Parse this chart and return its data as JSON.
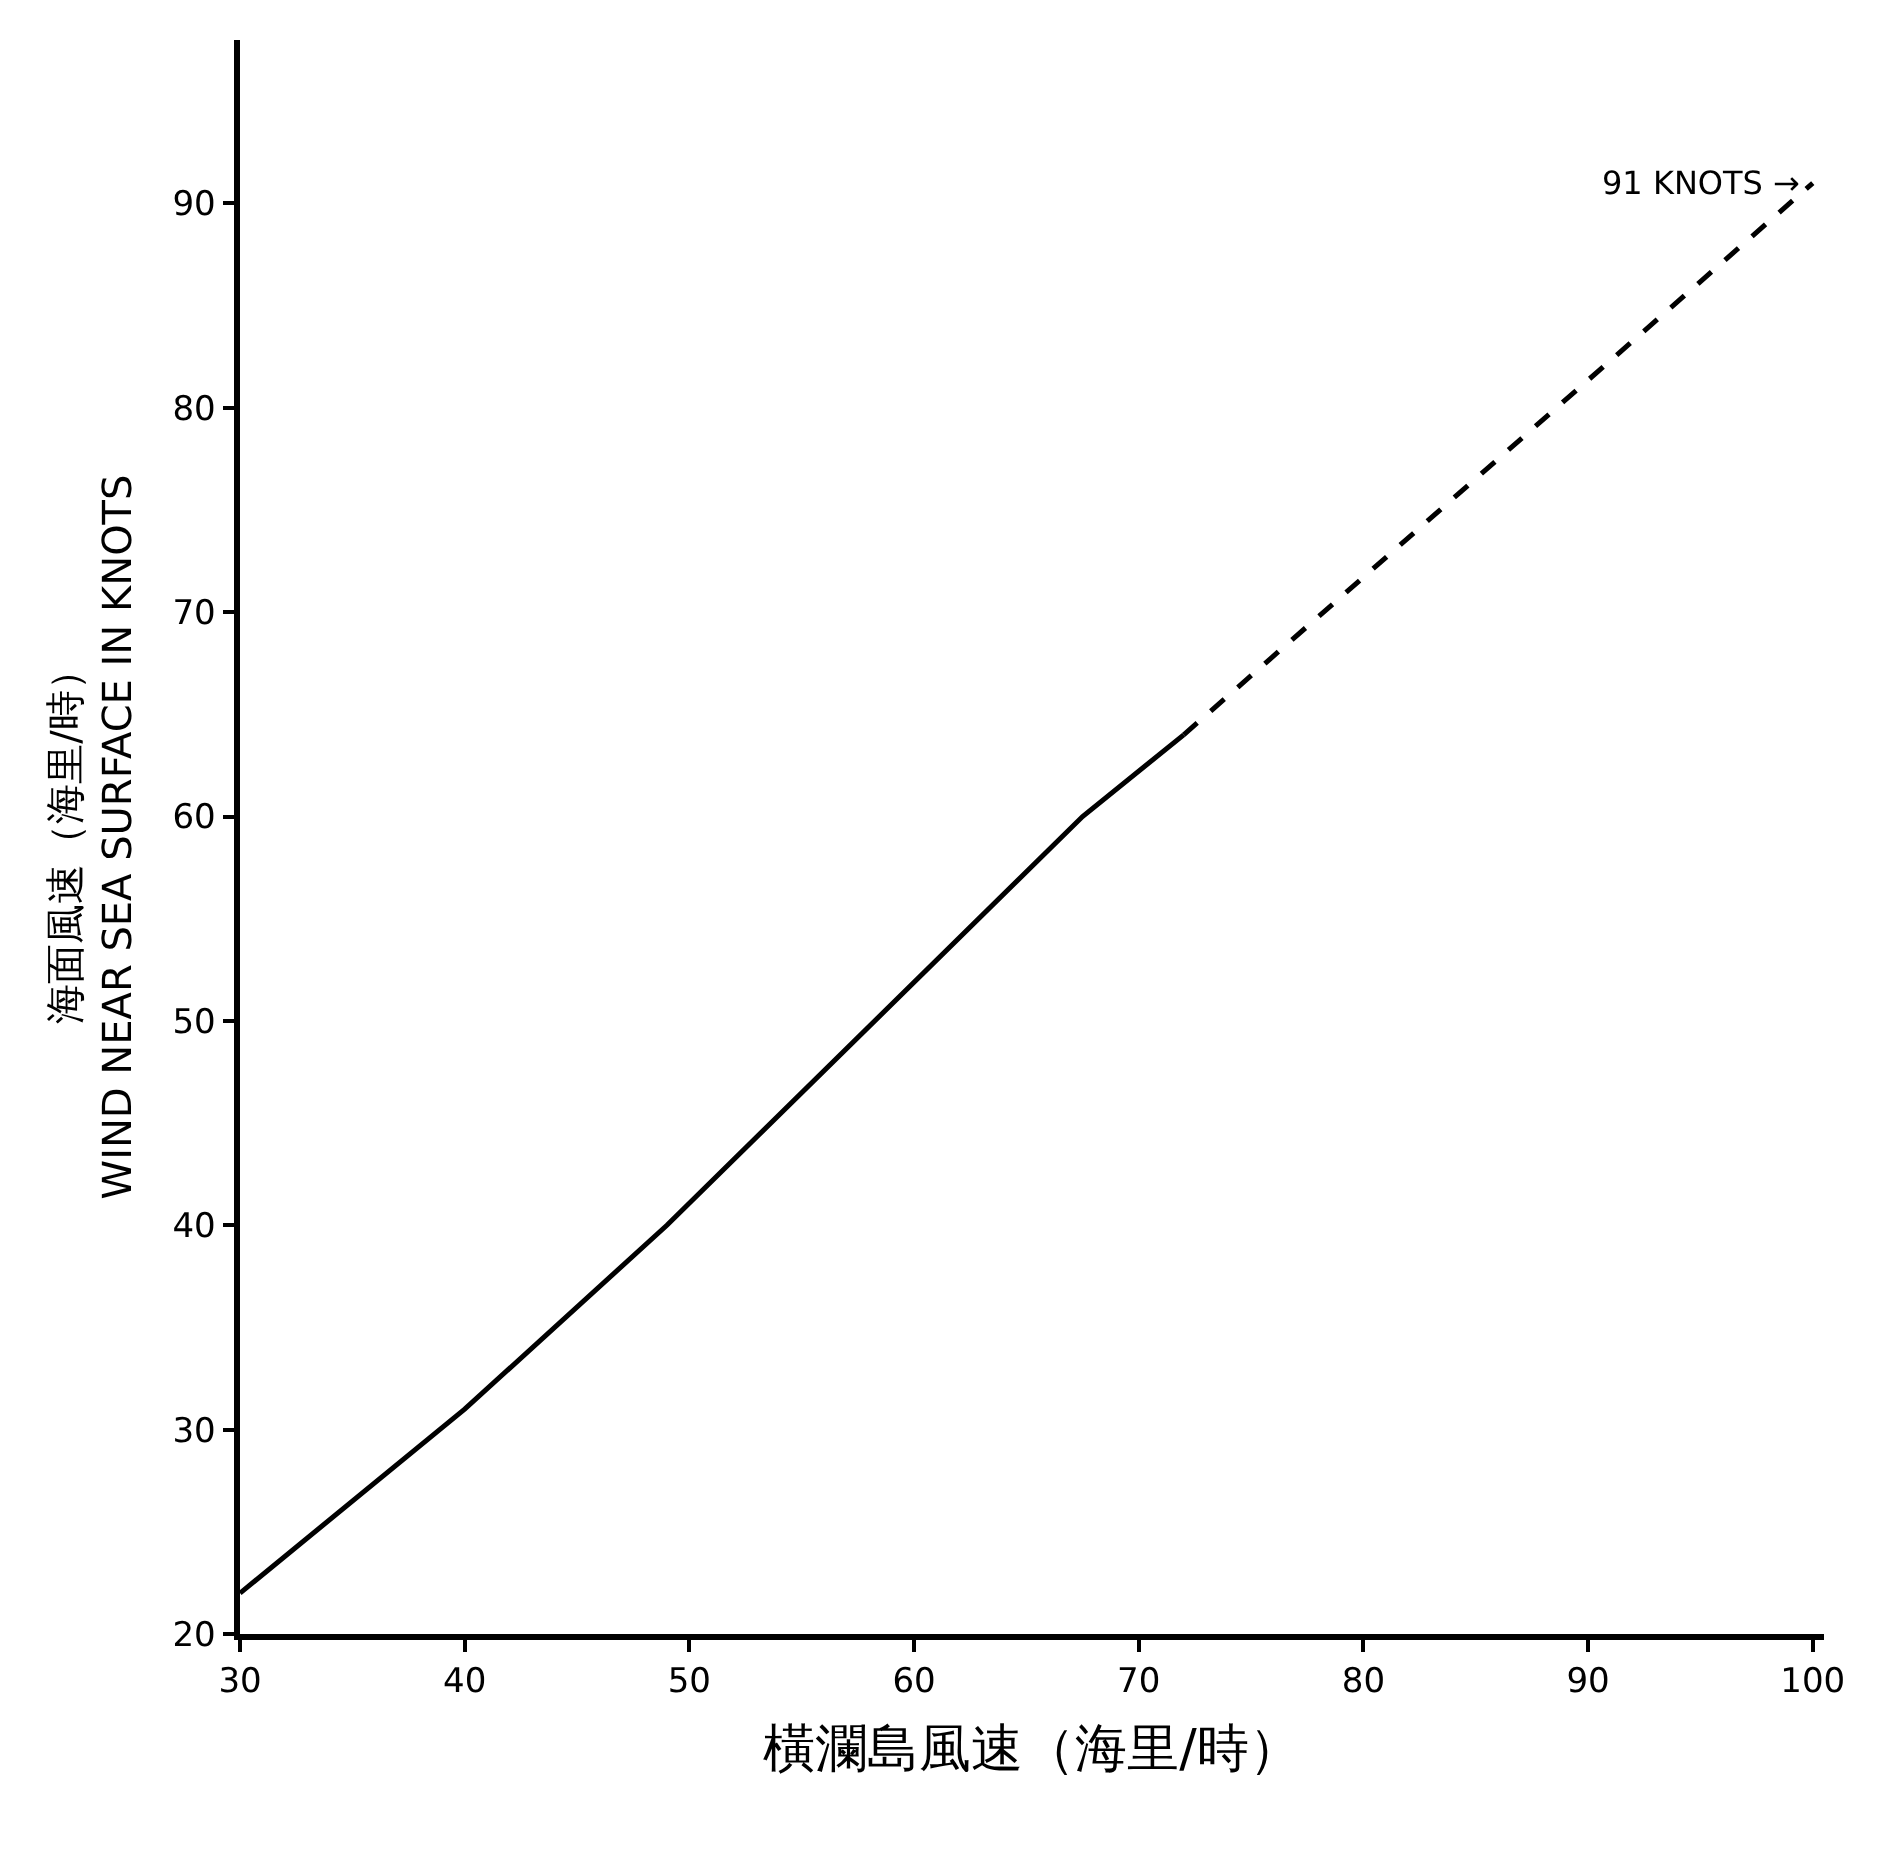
{
  "chart_data": {
    "type": "line",
    "xlabel": "橫瀾島風速（海里/時）",
    "ylabel": "海面風速（海里/時）\nWIND NEAR SEA SURFACE IN KNOTS",
    "series": [
      {
        "color": "#000000",
        "line_style": "solid",
        "x": [
          30,
          40,
          49,
          67.5,
          72
        ],
        "values": [
          22,
          31,
          40,
          60,
          64
        ]
      },
      {
        "color": "#000000",
        "line_style": "dashed",
        "x": [
          72,
          100
        ],
        "values": [
          64,
          91
        ]
      }
    ],
    "annotations": [
      {
        "text": "91 KNOTS →",
        "x": 100,
        "y": 91
      }
    ],
    "xlim": [
      30,
      100.5
    ],
    "xticks": [
      30,
      40,
      50,
      60,
      70,
      80,
      90,
      100
    ],
    "ylim": [
      20,
      98
    ],
    "yticks": [
      20,
      30,
      40,
      50,
      60,
      70,
      80,
      90
    ],
    "marker": "none"
  }
}
